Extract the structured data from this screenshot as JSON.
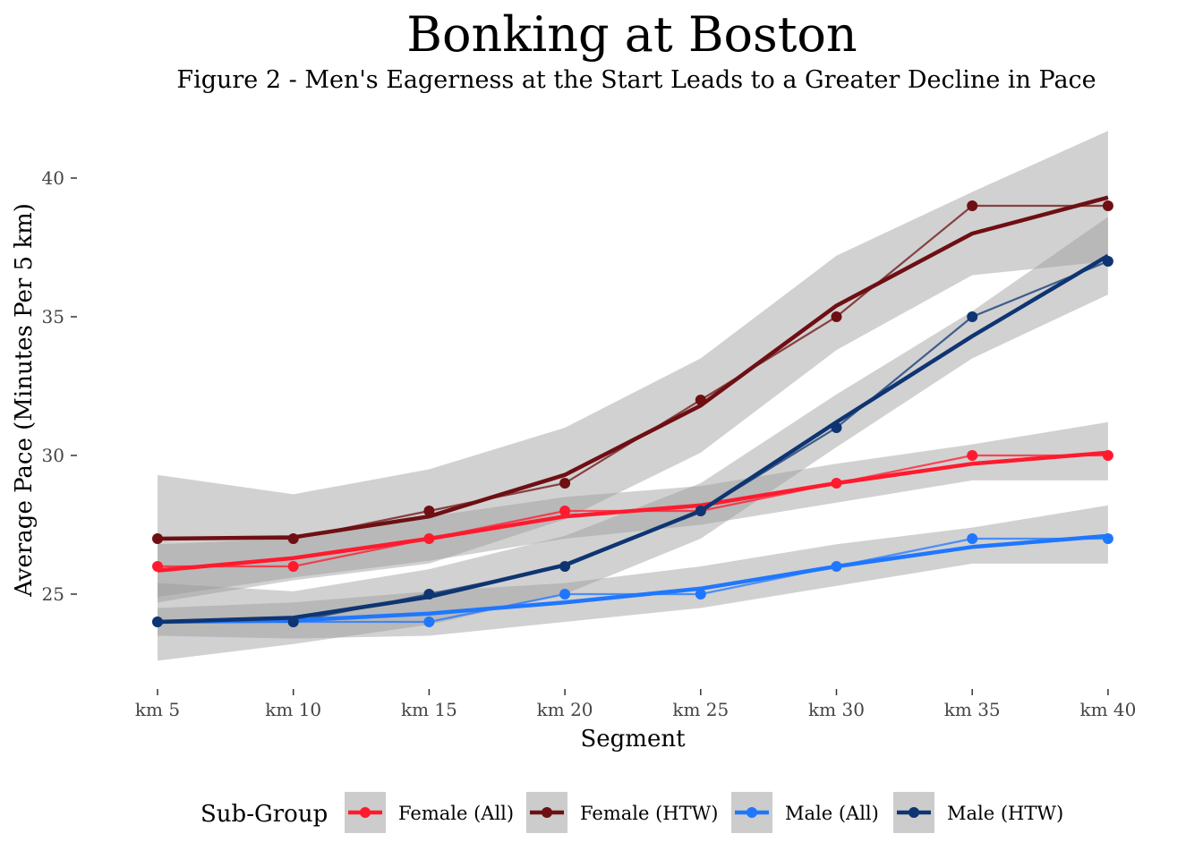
{
  "chart_data": {
    "type": "line",
    "title": "Bonking at Boston",
    "subtitle": "Figure 2 - Men's Eagerness at the Start Leads to a Greater Decline in Pace",
    "xlabel": "Segment",
    "ylabel": "Average Pace (Minutes Per 5 km)",
    "categories": [
      "km 5",
      "km 10",
      "km 15",
      "km 20",
      "km 25",
      "km 30",
      "km 35",
      "km 40"
    ],
    "ylim": [
      22,
      42
    ],
    "yticks": [
      25,
      30,
      35,
      40
    ],
    "grid": false,
    "legend_title": "Sub-Group",
    "legend_position": "bottom",
    "series": [
      {
        "name": "Female (All)",
        "color": "#ff1a2e",
        "values": [
          26,
          26,
          27,
          28,
          28,
          29,
          30,
          30
        ],
        "smooth": [
          25.85,
          26.3,
          27.0,
          27.8,
          28.2,
          29.0,
          29.7,
          30.1
        ],
        "band_low": [
          24.9,
          25.6,
          26.2,
          27.0,
          27.5,
          28.3,
          29.1,
          29.1
        ],
        "band_high": [
          26.8,
          27.0,
          27.8,
          28.5,
          28.9,
          29.7,
          30.4,
          31.2
        ]
      },
      {
        "name": "Female (HTW)",
        "color": "#6e0f13",
        "values": [
          27,
          27,
          28,
          29,
          32,
          35,
          39,
          39
        ],
        "smooth": [
          27.0,
          27.05,
          27.8,
          29.3,
          31.8,
          35.4,
          38.0,
          39.3
        ],
        "band_low": [
          24.7,
          25.5,
          26.1,
          27.7,
          30.1,
          33.8,
          36.5,
          37.0
        ],
        "band_high": [
          29.3,
          28.6,
          29.5,
          31.0,
          33.5,
          37.2,
          39.5,
          41.7
        ]
      },
      {
        "name": "Male (All)",
        "color": "#1f77ff",
        "values": [
          24,
          24,
          24,
          25,
          25,
          26,
          27,
          27
        ],
        "smooth": [
          24.0,
          24.05,
          24.3,
          24.7,
          25.2,
          26.0,
          26.7,
          27.1
        ],
        "band_low": [
          23.5,
          23.4,
          23.5,
          24.0,
          24.5,
          25.3,
          26.1,
          26.1
        ],
        "band_high": [
          24.5,
          24.7,
          25.1,
          25.4,
          26.0,
          26.8,
          27.4,
          28.2
        ]
      },
      {
        "name": "Male (HTW)",
        "color": "#0e3572",
        "values": [
          24,
          24,
          25,
          26,
          28,
          31,
          35,
          37
        ],
        "smooth": [
          24.0,
          24.15,
          24.9,
          26.05,
          28.0,
          31.2,
          34.3,
          37.2
        ],
        "band_low": [
          22.6,
          23.2,
          23.9,
          25.0,
          27.0,
          30.3,
          33.5,
          35.8
        ],
        "band_high": [
          25.4,
          25.1,
          25.9,
          27.1,
          29.0,
          32.2,
          35.2,
          38.6
        ]
      }
    ]
  }
}
